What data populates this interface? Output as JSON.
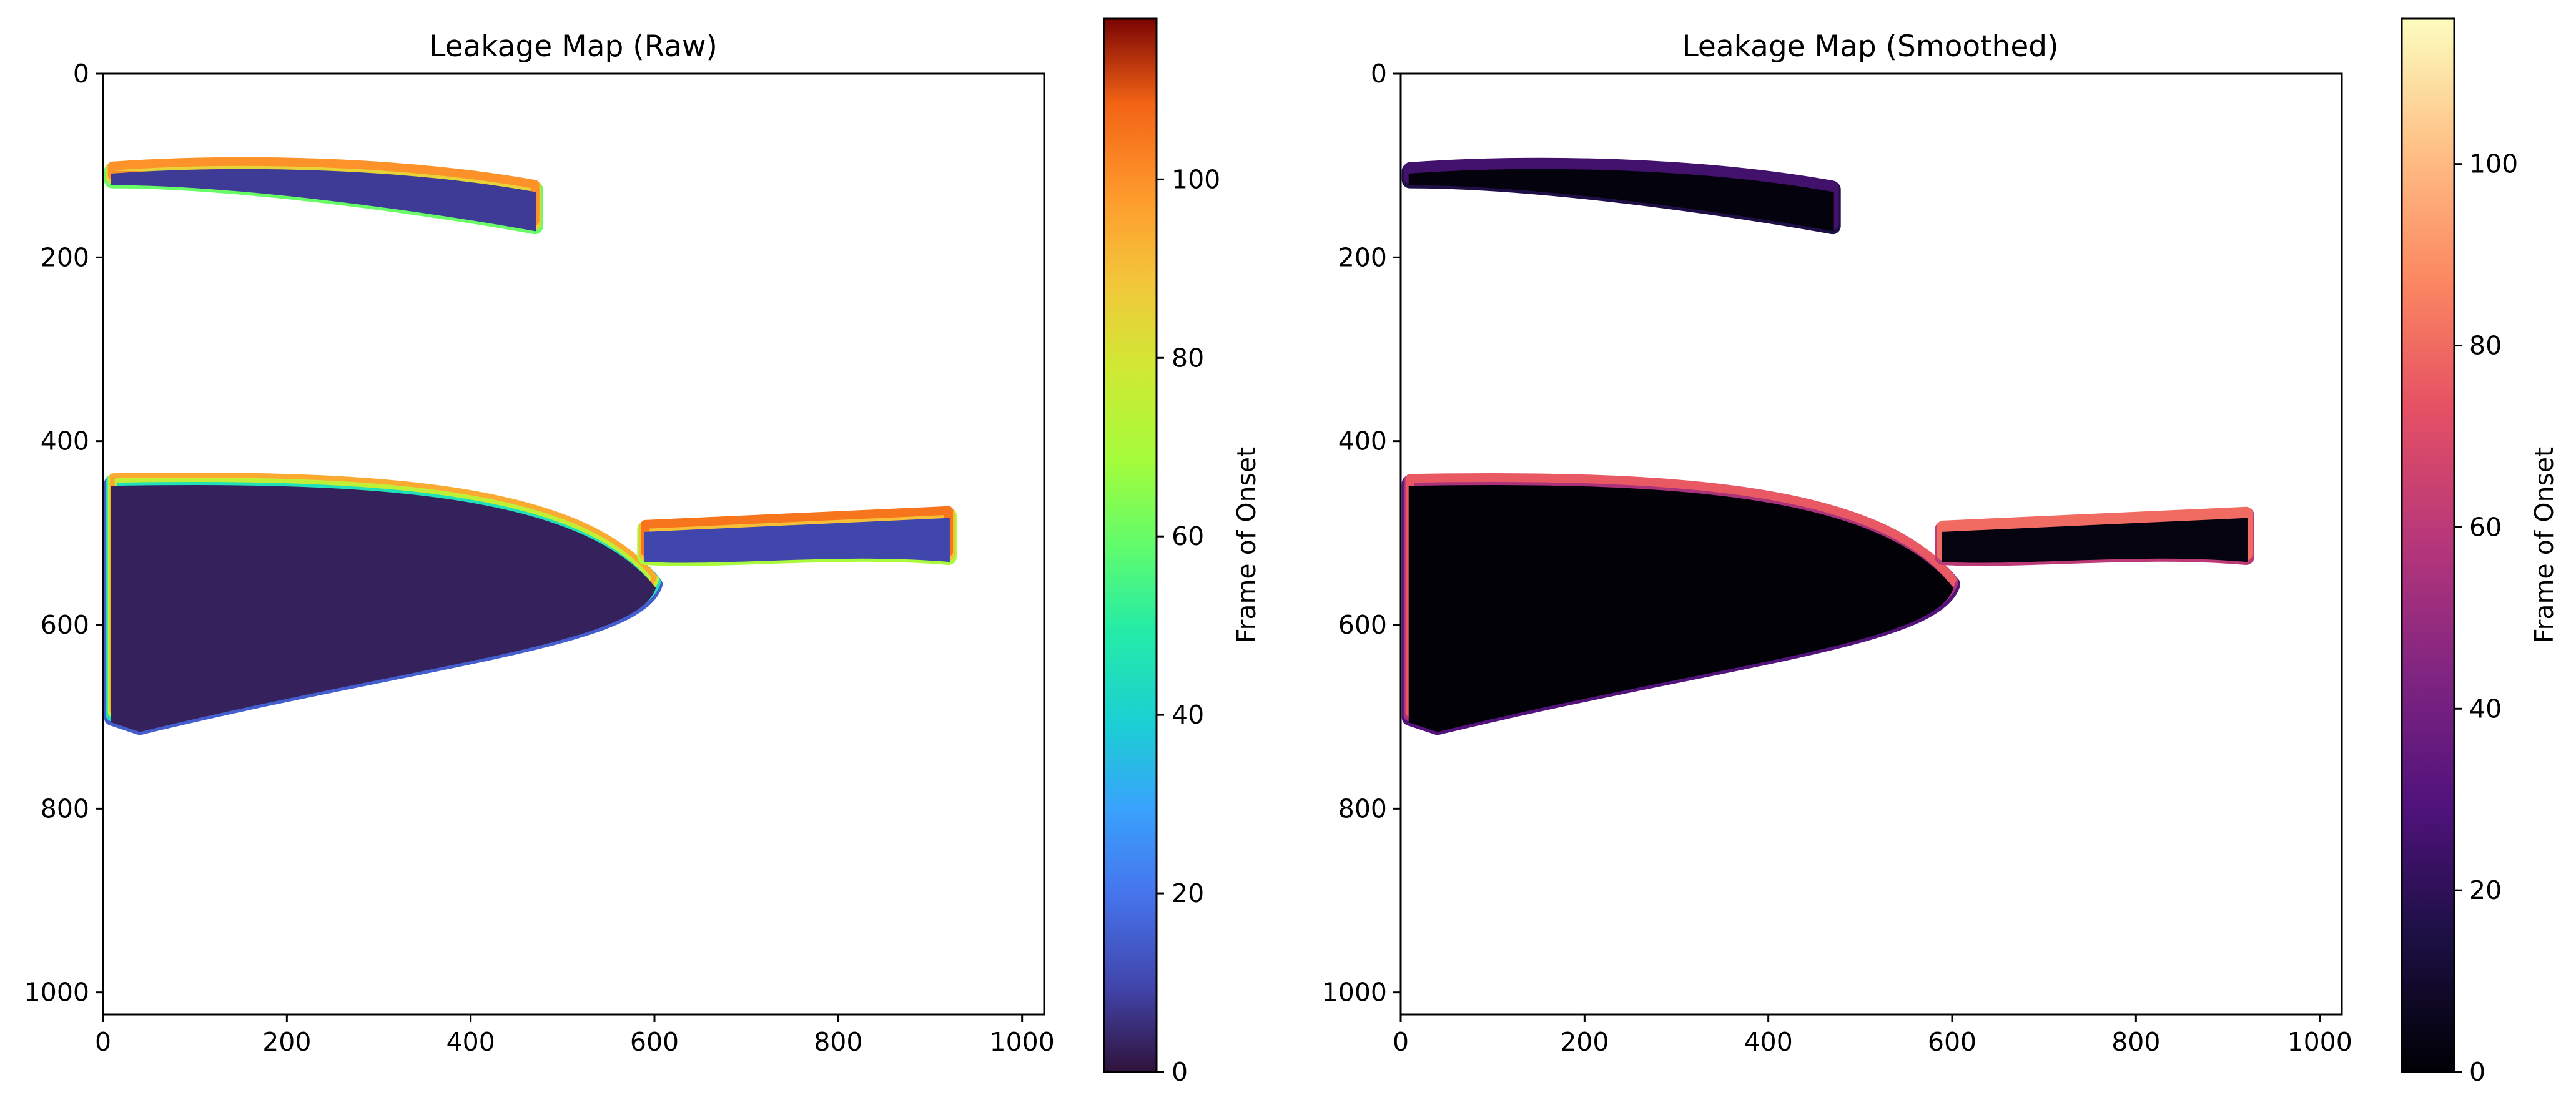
{
  "chart_data": [
    {
      "type": "heatmap",
      "title": "Leakage Map (Raw)",
      "xlabel": "",
      "ylabel": "",
      "xlim": [
        0,
        1024
      ],
      "ylim": [
        1024,
        0
      ],
      "x_ticks": [
        0,
        200,
        400,
        600,
        800,
        1000
      ],
      "y_ticks": [
        0,
        200,
        400,
        600,
        800,
        1000
      ],
      "colormap": "turbo",
      "colorbar": {
        "label": "Frame of Onset",
        "range": [
          0,
          118
        ],
        "ticks": [
          0,
          20,
          40,
          60,
          80,
          100
        ]
      },
      "background": "#ffffff",
      "regions": [
        {
          "id": "upper-streak",
          "x_range": [
            10,
            470
          ],
          "y_range": [
            100,
            170
          ],
          "dominant_value": 8,
          "edge_values": [
            60,
            85,
            100
          ]
        },
        {
          "id": "main-plume",
          "x_range": [
            10,
            600
          ],
          "y_range": [
            450,
            715
          ],
          "dominant_value": 3,
          "edge_values": [
            15,
            45,
            75,
            95
          ]
        },
        {
          "id": "tail-streak",
          "x_range": [
            590,
            920
          ],
          "y_range": [
            485,
            530
          ],
          "dominant_value": 10,
          "edge_values": [
            70,
            90,
            105
          ]
        }
      ]
    },
    {
      "type": "heatmap",
      "title": "Leakage Map (Smoothed)",
      "xlabel": "",
      "ylabel": "",
      "xlim": [
        0,
        1024
      ],
      "ylim": [
        1024,
        0
      ],
      "x_ticks": [
        0,
        200,
        400,
        600,
        800,
        1000
      ],
      "y_ticks": [
        0,
        200,
        400,
        600,
        800,
        1000
      ],
      "colormap": "magma",
      "colorbar": {
        "label": "Frame of Onset",
        "range": [
          0,
          116
        ],
        "ticks": [
          0,
          20,
          40,
          60,
          80,
          100
        ]
      },
      "background": "#ffffff",
      "regions": [
        {
          "id": "upper-streak",
          "x_range": [
            10,
            470
          ],
          "y_range": [
            100,
            170
          ],
          "dominant_value": 2,
          "edge_values": [
            15,
            25
          ]
        },
        {
          "id": "main-plume",
          "x_range": [
            10,
            600
          ],
          "y_range": [
            450,
            715
          ],
          "dominant_value": 1,
          "edge_values": [
            30,
            55,
            75
          ]
        },
        {
          "id": "tail-streak",
          "x_range": [
            590,
            920
          ],
          "y_range": [
            485,
            530
          ],
          "dominant_value": 3,
          "edge_values": [
            60,
            80
          ]
        }
      ]
    }
  ]
}
